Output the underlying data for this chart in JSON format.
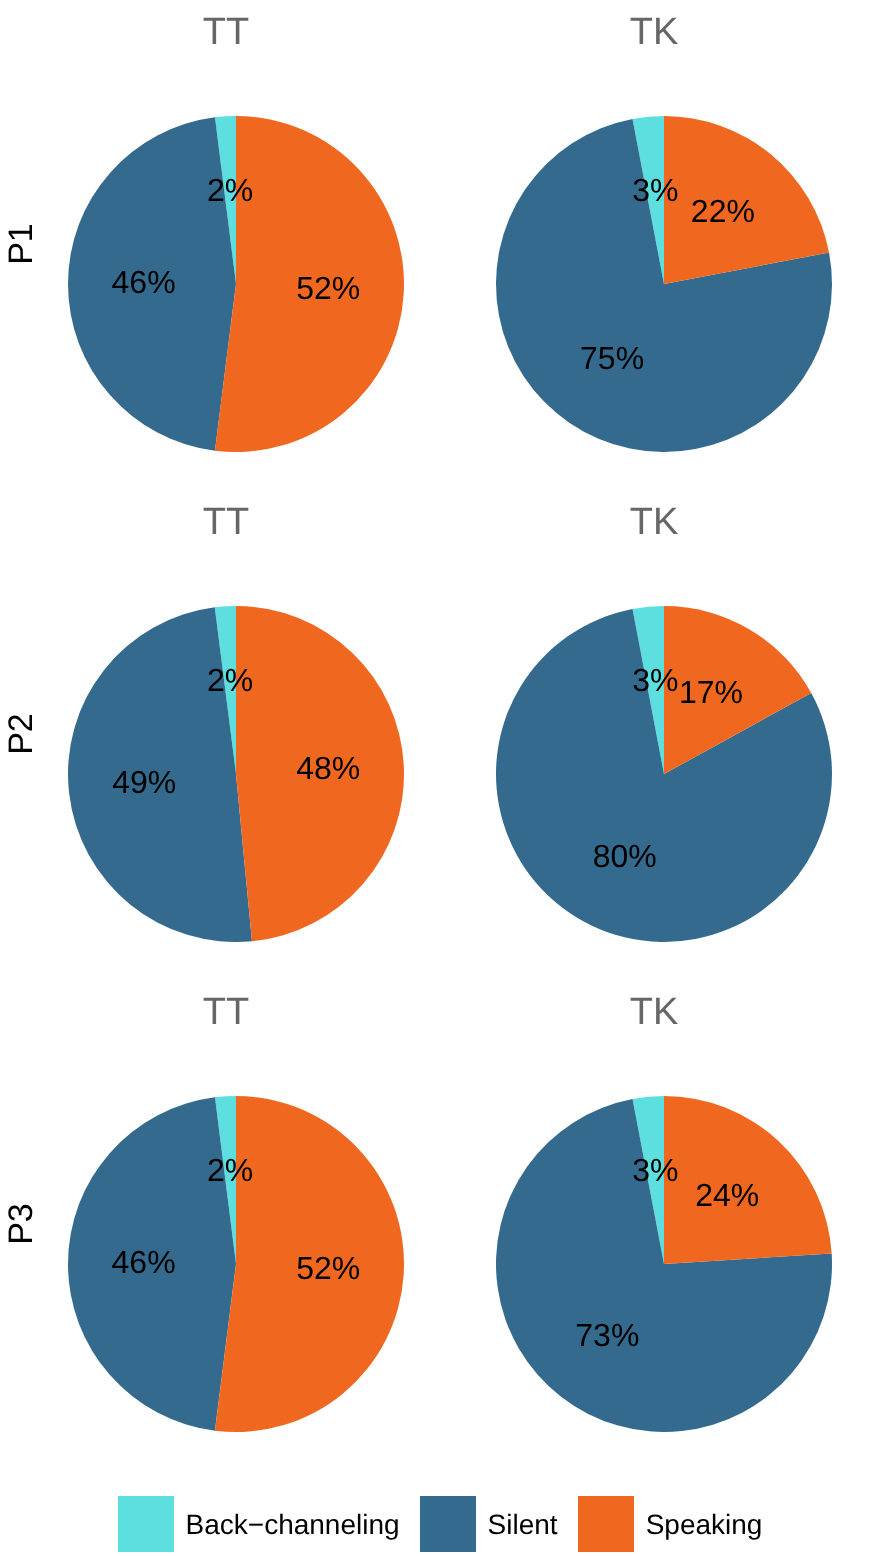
{
  "chart_data": [
    {
      "type": "pie",
      "title": "TT",
      "ylabel": "P1",
      "categories": [
        "Back−channeling",
        "Silent",
        "Speaking"
      ],
      "values": [
        2,
        46,
        52
      ],
      "value_labels": [
        "2%",
        "46%",
        "52%"
      ],
      "colors": [
        "#5ddfe0",
        "#336a8e",
        "#f0681f"
      ],
      "legend": "bottom"
    },
    {
      "type": "pie",
      "title": "TK",
      "categories": [
        null,
        null,
        null
      ],
      "values": [
        3,
        75,
        22
      ],
      "value_labels": [
        "3%",
        "75%",
        "22%"
      ],
      "colors": [
        "#5ddfe0",
        "#336a8e",
        "#f0681f"
      ]
    },
    {
      "type": "pie",
      "title": "TT",
      "ylabel": "P2",
      "categories": [
        null,
        null,
        null
      ],
      "values": [
        2,
        49,
        48
      ],
      "value_labels": [
        "2%",
        "49%",
        "48%"
      ],
      "colors": [
        "#5ddfe0",
        "#336a8e",
        "#f0681f"
      ]
    },
    {
      "type": "pie",
      "title": "TK",
      "categories": [
        null,
        null,
        null
      ],
      "values": [
        3,
        80,
        17
      ],
      "value_labels": [
        "3%",
        "80%",
        "17%"
      ],
      "colors": [
        "#5ddfe0",
        "#336a8e",
        "#f0681f"
      ]
    },
    {
      "type": "pie",
      "title": "TT",
      "ylabel": "P3",
      "categories": [
        null,
        null,
        null
      ],
      "values": [
        2,
        46,
        52
      ],
      "value_labels": [
        "2%",
        "46%",
        "52%"
      ],
      "colors": [
        "#5ddfe0",
        "#336a8e",
        "#f0681f"
      ]
    },
    {
      "type": "pie",
      "title": "TK",
      "categories": [
        null,
        null,
        null
      ],
      "values": [
        3,
        73,
        24
      ],
      "value_labels": [
        "3%",
        "73%",
        "24%"
      ],
      "colors": [
        "#5ddfe0",
        "#336a8e",
        "#f0681f"
      ]
    }
  ]
}
